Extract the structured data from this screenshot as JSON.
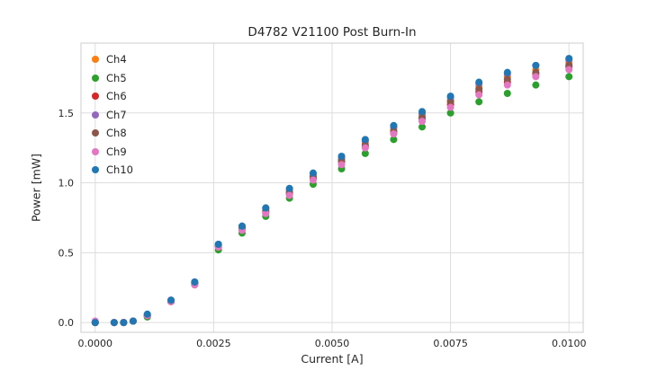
{
  "chart_data": {
    "type": "scatter",
    "title": "D4782 V21100 Post Burn-In",
    "xlabel": "Current [A]",
    "ylabel": "Power [mW]",
    "xlim": [
      -0.0003,
      0.0103
    ],
    "ylim": [
      -0.07,
      2.0
    ],
    "grid": true,
    "legend_position": "upper left",
    "marker_radius": 4,
    "grid_color": "#dddddd",
    "spine_color": "#cccccc",
    "x_ticks": {
      "values": [
        0.0,
        0.0025,
        0.005,
        0.0075,
        0.01
      ],
      "labels": [
        "0.0000",
        "0.0025",
        "0.0050",
        "0.0075",
        "0.0100"
      ]
    },
    "y_ticks": {
      "values": [
        0.0,
        0.5,
        1.0,
        1.5
      ],
      "labels": [
        "0.0",
        "0.5",
        "1.0",
        "1.5"
      ]
    },
    "x": [
      0.0,
      0.0004,
      0.0006,
      0.0008,
      0.0011,
      0.0016,
      0.0021,
      0.0026,
      0.0031,
      0.0036,
      0.0041,
      0.0046,
      0.0052,
      0.0057,
      0.0063,
      0.0069,
      0.0075,
      0.0081,
      0.0087,
      0.0093,
      0.01
    ],
    "series": [
      {
        "name": "Ch4",
        "color": "#ff7f0e",
        "y": [
          0.0,
          0.0,
          0.0,
          0.01,
          0.05,
          0.16,
          0.28,
          0.55,
          0.68,
          0.81,
          0.94,
          1.05,
          1.17,
          1.29,
          1.39,
          1.49,
          1.59,
          1.69,
          1.76,
          1.81,
          1.86
        ]
      },
      {
        "name": "Ch5",
        "color": "#2ca02c",
        "y": [
          0.0,
          0.0,
          0.0,
          0.01,
          0.04,
          0.15,
          0.27,
          0.52,
          0.64,
          0.76,
          0.89,
          0.99,
          1.1,
          1.21,
          1.31,
          1.4,
          1.5,
          1.58,
          1.64,
          1.7,
          1.76
        ]
      },
      {
        "name": "Ch6",
        "color": "#d62728",
        "y": [
          0.0,
          0.0,
          0.0,
          0.01,
          0.05,
          0.15,
          0.28,
          0.54,
          0.67,
          0.79,
          0.92,
          1.03,
          1.15,
          1.26,
          1.36,
          1.46,
          1.56,
          1.65,
          1.72,
          1.78,
          1.83
        ]
      },
      {
        "name": "Ch7",
        "color": "#9467bd",
        "y": [
          0.0,
          0.0,
          0.0,
          0.01,
          0.05,
          0.16,
          0.29,
          0.56,
          0.69,
          0.82,
          0.95,
          1.06,
          1.18,
          1.3,
          1.4,
          1.5,
          1.61,
          1.71,
          1.78,
          1.84,
          1.88
        ]
      },
      {
        "name": "Ch8",
        "color": "#8c564b",
        "y": [
          0.0,
          0.0,
          0.0,
          0.01,
          0.05,
          0.15,
          0.28,
          0.55,
          0.67,
          0.8,
          0.93,
          1.04,
          1.16,
          1.27,
          1.37,
          1.47,
          1.58,
          1.67,
          1.74,
          1.79,
          1.84
        ]
      },
      {
        "name": "Ch9",
        "color": "#e377c2",
        "y": [
          0.01,
          0.0,
          0.0,
          0.01,
          0.05,
          0.15,
          0.27,
          0.54,
          0.66,
          0.78,
          0.91,
          1.02,
          1.13,
          1.25,
          1.35,
          1.44,
          1.54,
          1.63,
          1.7,
          1.76,
          1.81
        ]
      },
      {
        "name": "Ch10",
        "color": "#1f77b4",
        "y": [
          0.0,
          0.0,
          0.0,
          0.01,
          0.06,
          0.16,
          0.29,
          0.56,
          0.69,
          0.82,
          0.96,
          1.07,
          1.19,
          1.31,
          1.41,
          1.51,
          1.62,
          1.72,
          1.79,
          1.84,
          1.89
        ]
      }
    ]
  }
}
